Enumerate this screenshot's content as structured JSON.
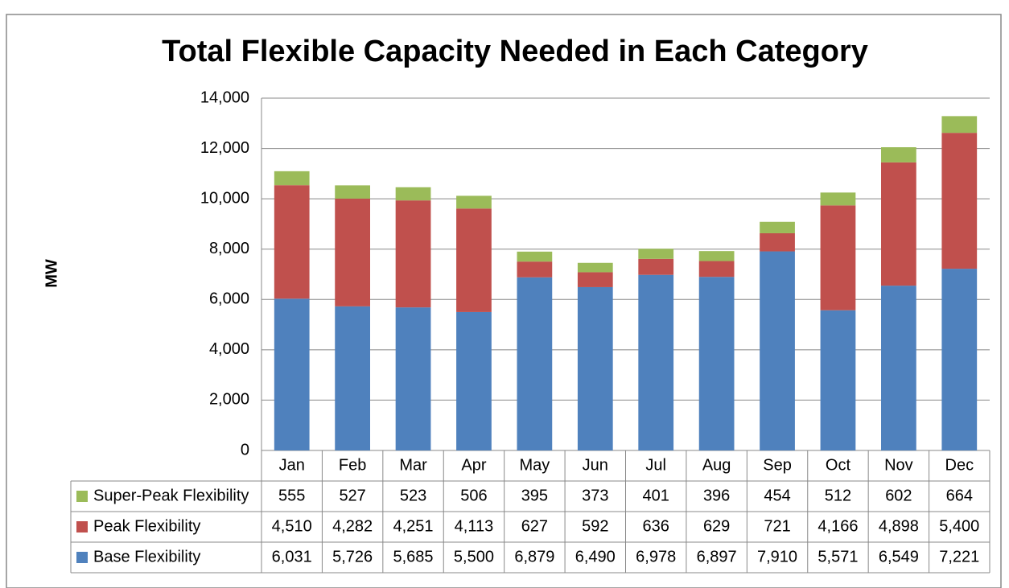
{
  "chart_data": {
    "type": "stacked-bar",
    "title": "Total Flexible Capacity Needed in Each Category",
    "y_label": "MW",
    "categories": [
      "Jan",
      "Feb",
      "Mar",
      "Apr",
      "May",
      "Jun",
      "Jul",
      "Aug",
      "Sep",
      "Oct",
      "Nov",
      "Dec"
    ],
    "series": [
      {
        "name": "Base Flexibility",
        "color": "#4f81bd",
        "values": [
          6031,
          5726,
          5685,
          5500,
          6879,
          6490,
          6978,
          6897,
          7910,
          5571,
          6549,
          7221
        ],
        "value_labels": [
          "6,031",
          "5,726",
          "5,685",
          "5,500",
          "6,879",
          "6,490",
          "6,978",
          "6,897",
          "7,910",
          "5,571",
          "6,549",
          "7,221"
        ]
      },
      {
        "name": "Peak Flexibility",
        "color": "#c0504d",
        "values": [
          4510,
          4282,
          4251,
          4113,
          627,
          592,
          636,
          629,
          721,
          4166,
          4898,
          5400
        ],
        "value_labels": [
          "4,510",
          "4,282",
          "4,251",
          "4,113",
          "627",
          "592",
          "636",
          "629",
          "721",
          "4,166",
          "4,898",
          "5,400"
        ]
      },
      {
        "name": "Super-Peak Flexibility",
        "color": "#9bbb59",
        "values": [
          555,
          527,
          523,
          506,
          395,
          373,
          401,
          396,
          454,
          512,
          602,
          664
        ]
      }
    ],
    "ylim": [
      0,
      14000
    ],
    "yticks": [
      0,
      {
        "value": 2000,
        "label": "2,000"
      },
      {
        "value": 4000,
        "label": "4,000"
      },
      {
        "value": 6000,
        "label": "6,000"
      },
      {
        "value": 8000,
        "label": "8,000"
      },
      {
        "value": 10000,
        "label": "10,000"
      },
      {
        "value": 12000,
        "label": "12,000"
      },
      {
        "value": 14000,
        "label": "14,000"
      }
    ],
    "grid": true
  }
}
